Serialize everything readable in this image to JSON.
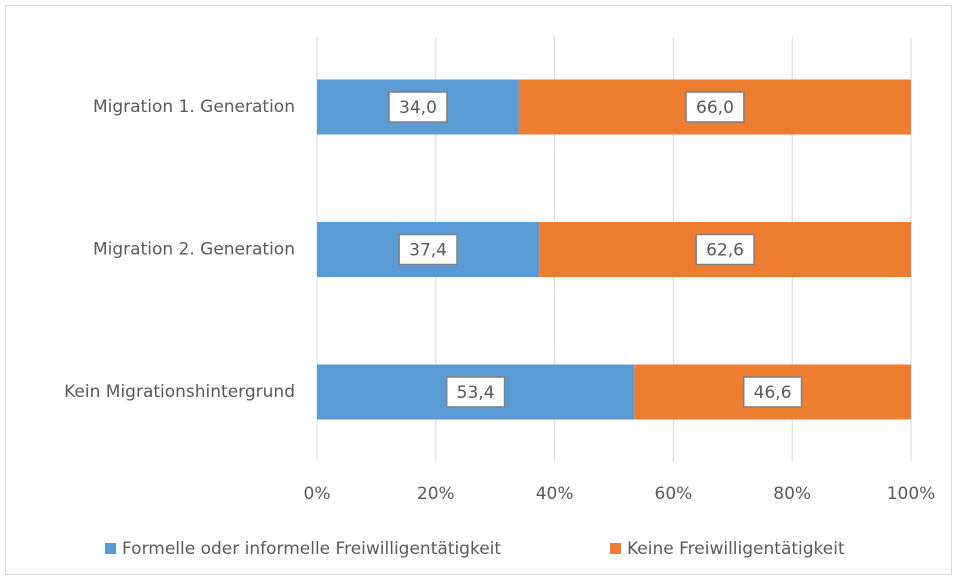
{
  "chart_data": {
    "type": "stacked_bar_horizontal",
    "categories": [
      "Migration 1. Generation",
      "Migration 2. Generation",
      "Kein Migrationshintergrund"
    ],
    "series": [
      {
        "name": "Formelle oder informelle Freiwilligentätigkeit",
        "color": "#5b9bd5",
        "values": [
          34.0,
          37.4,
          53.4
        ],
        "value_labels": [
          "34,0",
          "37,4",
          "53,4"
        ]
      },
      {
        "name": "Keine Freiwilligentätigkeit",
        "color": "#ed7d31",
        "values": [
          66.0,
          62.6,
          46.6
        ],
        "value_labels": [
          "66,0",
          "62,6",
          "46,6"
        ]
      }
    ],
    "xlim": [
      0,
      100
    ],
    "xticks": [
      {
        "value": 0,
        "label": "0%"
      },
      {
        "value": 20,
        "label": "20%"
      },
      {
        "value": 40,
        "label": "40%"
      },
      {
        "value": 60,
        "label": "60%"
      },
      {
        "value": 80,
        "label": "80%"
      },
      {
        "value": 100,
        "label": "100%"
      }
    ],
    "grid": true,
    "legend": "bottom"
  }
}
